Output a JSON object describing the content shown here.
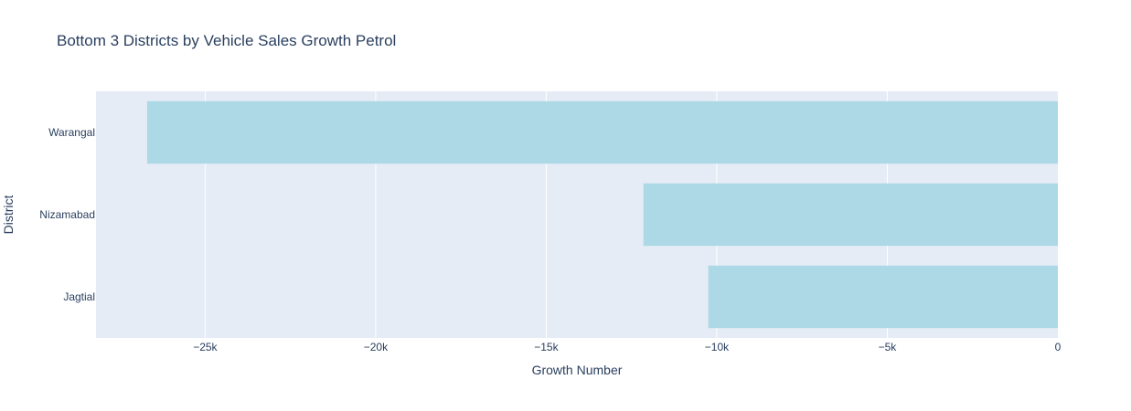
{
  "chart_data": {
    "type": "bar",
    "orientation": "horizontal",
    "title": "Bottom 3 Districts by Vehicle Sales Growth Petrol",
    "xlabel": "Growth Number",
    "ylabel": "District",
    "categories": [
      "Warangal",
      "Nizamabad",
      "Jagtial"
    ],
    "values": [
      -26700,
      -12150,
      -10250
    ],
    "xlim": [
      -28200,
      0
    ],
    "xticks": [
      -25000,
      -20000,
      -15000,
      -10000,
      -5000,
      0
    ],
    "xtick_labels": [
      "−25k",
      "−20k",
      "−15k",
      "−10k",
      "−5k",
      "0"
    ],
    "grid": true,
    "legend": "none",
    "colors": {
      "bar": "#add8e6",
      "plot_background": "#e5ecf6",
      "grid": "#ffffff",
      "text": "#2a3f5f"
    }
  }
}
